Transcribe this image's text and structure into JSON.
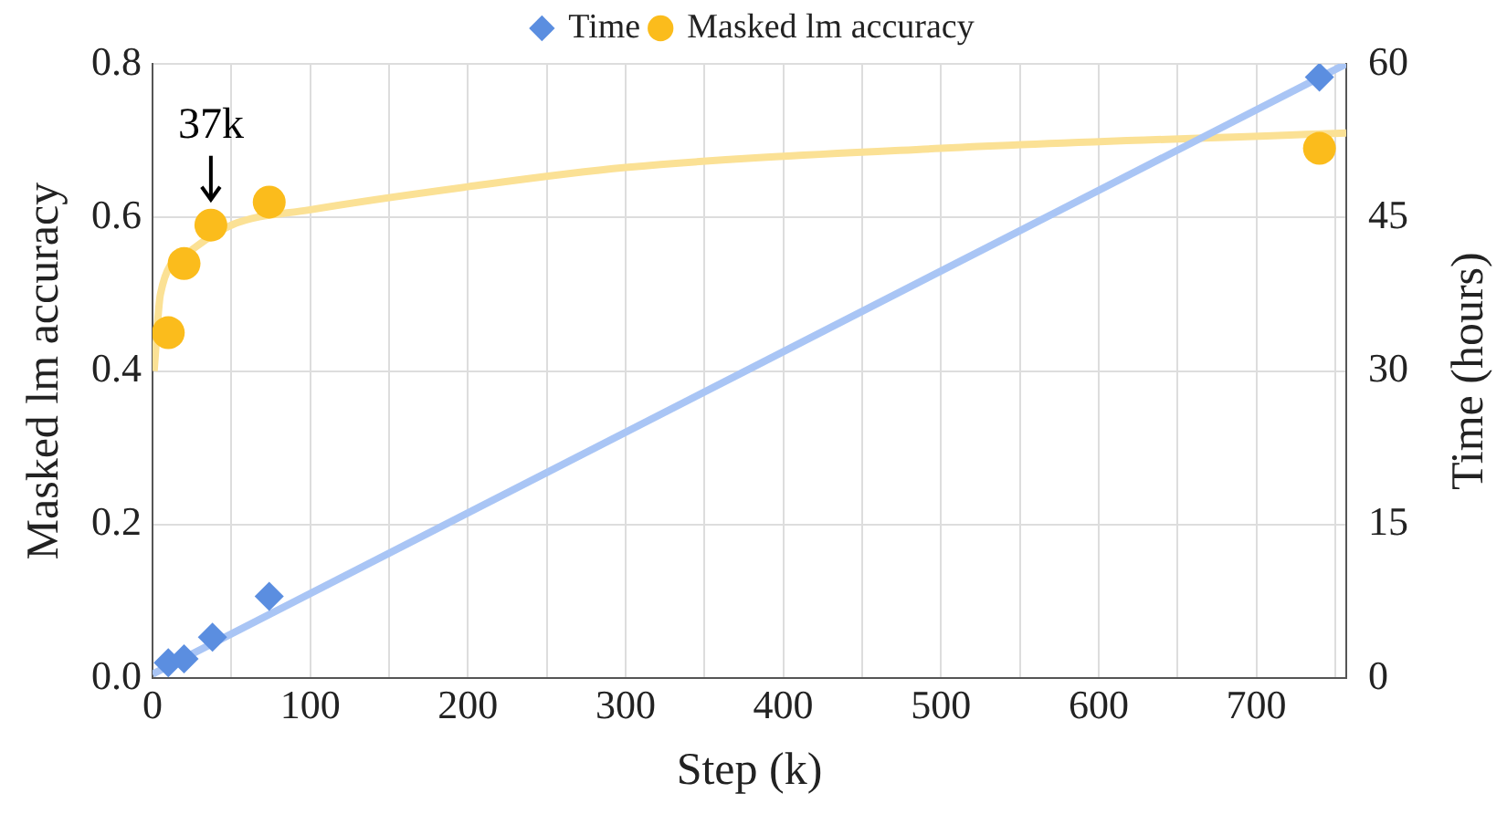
{
  "chart_data": {
    "type": "scatter",
    "xlabel": "Step (k)",
    "ylabel": "Masked lm accuracy",
    "y2label": "Time (hours)",
    "xlim": [
      0,
      757
    ],
    "xticks": [
      0,
      {
        "value": 50,
        "label": null
      },
      100,
      {
        "value": 150,
        "label": null
      },
      200,
      {
        "value": 250,
        "label": null
      },
      300,
      {
        "value": 350,
        "label": null
      },
      400,
      {
        "value": 450,
        "label": null
      },
      500,
      {
        "value": 550,
        "label": null
      },
      600,
      {
        "value": 650,
        "label": null
      },
      700,
      {
        "value": 750,
        "label": null
      }
    ],
    "ylim": [
      0,
      0.8
    ],
    "yticks": [
      {
        "value": 0,
        "label": "0.0"
      },
      {
        "value": 0.2,
        "label": "0.2"
      },
      {
        "value": 0.4,
        "label": "0.4"
      },
      {
        "value": 0.6,
        "label": "0.6"
      },
      {
        "value": 0.8,
        "label": "0.8"
      }
    ],
    "y2lim": [
      0,
      60
    ],
    "y2ticks": [
      0,
      15,
      30,
      45,
      60
    ],
    "grid": true,
    "legend": "top",
    "annotations": [
      {
        "text": "37k",
        "x": 37,
        "y": 0.59
      }
    ],
    "series": [
      {
        "name": "Time",
        "type": "scatter",
        "axis": "y2",
        "marker": "diamond",
        "color": "#5b8ee0",
        "x": [
          10,
          20,
          38,
          74,
          740
        ],
        "values": [
          1.5,
          1.9,
          4.0,
          8.0,
          58.7
        ]
      },
      {
        "name": "Masked lm accuracy",
        "type": "scatter",
        "marker": "circle",
        "color": "#fbbc1c",
        "x": [
          10,
          20,
          37,
          74,
          740
        ],
        "values": [
          0.45,
          0.54,
          0.59,
          0.62,
          0.69
        ]
      },
      {
        "type": "line",
        "axis": "y2",
        "marker": "none",
        "color": "#a9c5f5",
        "x": [
          0,
          757
        ],
        "values": [
          0.4,
          60
        ]
      },
      {
        "type": "line",
        "marker": "none",
        "color": "#fbe195",
        "x": [
          1,
          5,
          20,
          50,
          100,
          200,
          300,
          500,
          757
        ],
        "values": [
          0.4,
          0.5,
          0.55,
          0.59,
          0.61,
          0.64,
          0.665,
          0.69,
          0.71
        ]
      }
    ]
  }
}
